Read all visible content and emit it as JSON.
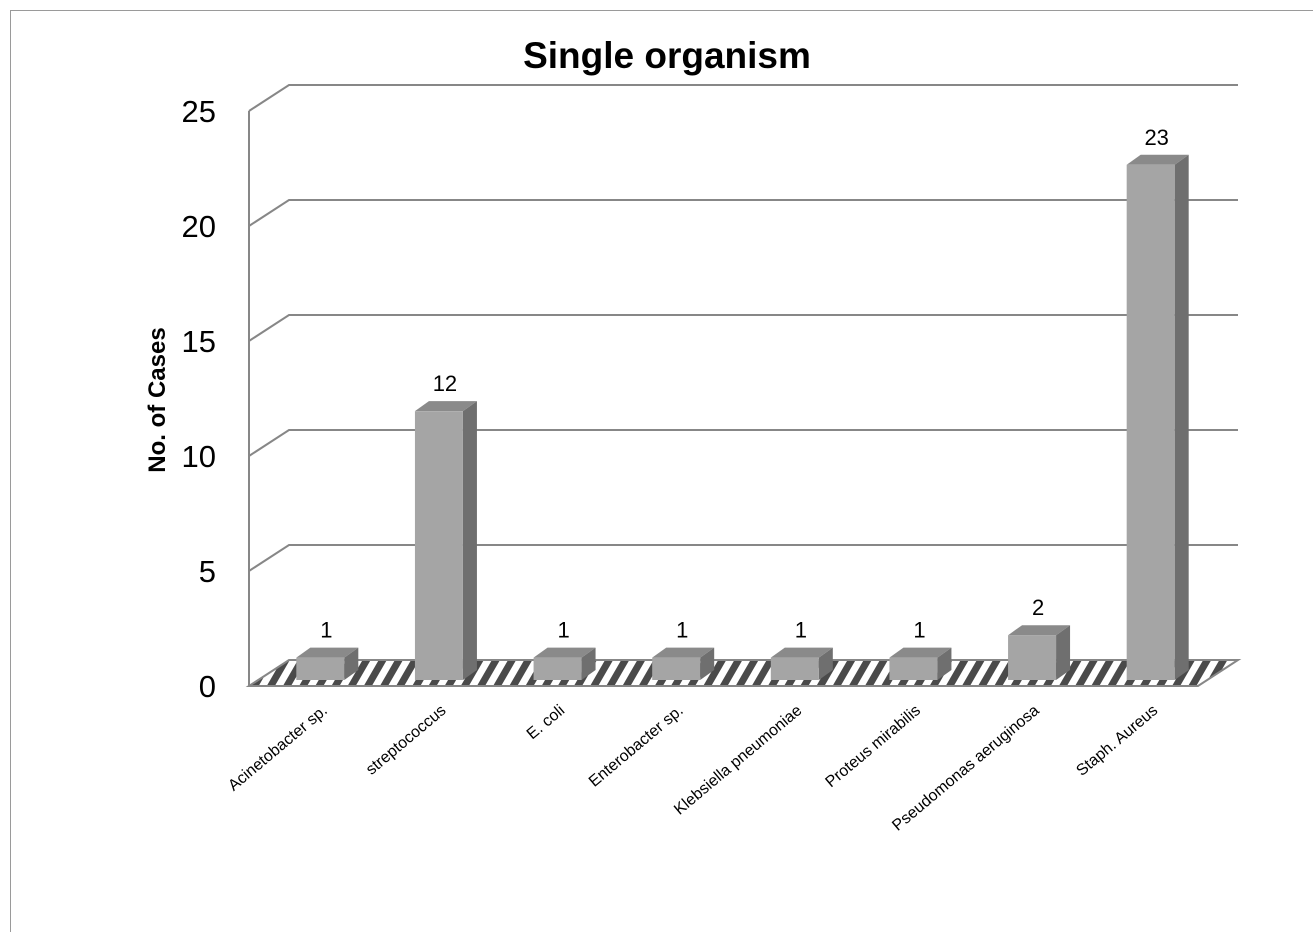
{
  "chart_data": {
    "type": "bar",
    "title": "Single organism",
    "xlabel": "",
    "ylabel": "No. of Cases",
    "categories": [
      "Acinetobacter sp.",
      "streptococcus",
      "E. coli",
      "Enterobacter sp.",
      "Klebsiella pneumoniae",
      "Proteus mirabilis",
      "Pseudomonas aeruginosa",
      "Staph. Aureus"
    ],
    "values": [
      1,
      12,
      1,
      1,
      1,
      1,
      2,
      23
    ],
    "ylim": [
      0,
      25
    ],
    "yticks": [
      "0",
      "5",
      "10",
      "15",
      "20",
      "25"
    ],
    "data_labels": [
      "1",
      "12",
      "1",
      "1",
      "1",
      "1",
      "2",
      "23"
    ],
    "grid": true,
    "legend": "none",
    "style": "3d-column",
    "colors": {
      "bar_front": "#a5a5a5",
      "bar_side": "#6f6f6f",
      "bar_top": "#8a8a8a",
      "gridline": "#878787",
      "floor_shadow": "#4a4a4a"
    }
  }
}
